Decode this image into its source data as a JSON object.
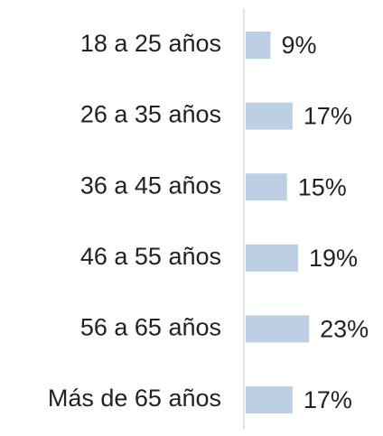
{
  "chart_data": {
    "type": "bar",
    "orientation": "horizontal",
    "categories": [
      "18 a 25 años",
      "26 a 35 años",
      "36 a 45 años",
      "46 a 55 años",
      "56 a 65 años",
      "Más de 65 años"
    ],
    "values": [
      9,
      17,
      15,
      19,
      23,
      17
    ],
    "value_labels": [
      "9%",
      "17%",
      "15%",
      "19%",
      "23%",
      "17%"
    ],
    "color": "#bccfe3"
  }
}
